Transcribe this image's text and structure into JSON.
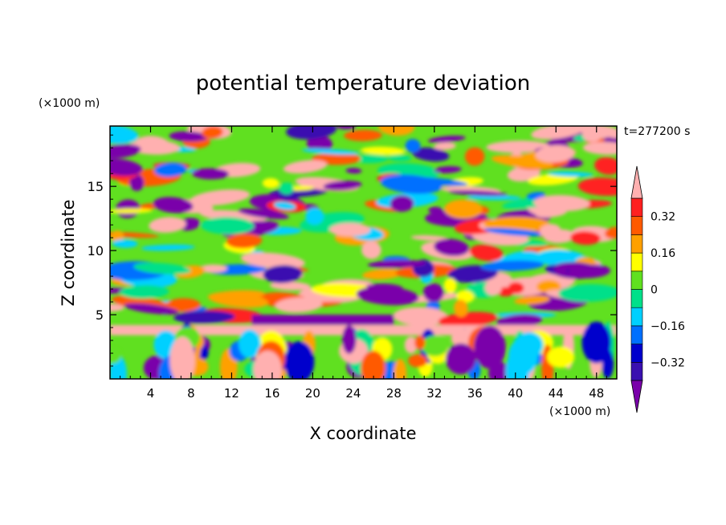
{
  "chart_data": {
    "type": "heatmap",
    "title": "potential temperature deviation",
    "xlabel": "X coordinate",
    "ylabel": "Z coordinate",
    "x_unit": "(×1000 m)",
    "y_unit": "(×1000 m)",
    "time_label": "t=277200 s",
    "xlim": [
      0,
      50
    ],
    "ylim": [
      0,
      19.7
    ],
    "x_ticks": [
      4,
      8,
      12,
      16,
      20,
      24,
      28,
      32,
      36,
      40,
      44,
      48
    ],
    "y_ticks": [
      5,
      10,
      15
    ],
    "x_tick_labels": [
      "4",
      "8",
      "12",
      "16",
      "20",
      "24",
      "28",
      "32",
      "36",
      "40",
      "44",
      "48"
    ],
    "y_tick_labels": [
      "5",
      "10",
      "15"
    ],
    "colorbar": {
      "levels": [
        -0.4,
        -0.32,
        -0.24,
        -0.16,
        -0.08,
        0,
        0.08,
        0.16,
        0.24,
        0.32,
        0.4
      ],
      "tick_labels": [
        "0.32",
        "0.16",
        "0",
        "−0.16",
        "−0.32"
      ],
      "tick_values": [
        0.32,
        0.16,
        0,
        -0.16,
        -0.32
      ],
      "colors": [
        "#7a00aa",
        "#3a10b0",
        "#0000cc",
        "#0070ff",
        "#00d0ff",
        "#00e08a",
        "#60e020",
        "#ffff00",
        "#ffa000",
        "#ff5a00",
        "#ff2020",
        "#ffb0b0"
      ]
    },
    "grid": false
  }
}
